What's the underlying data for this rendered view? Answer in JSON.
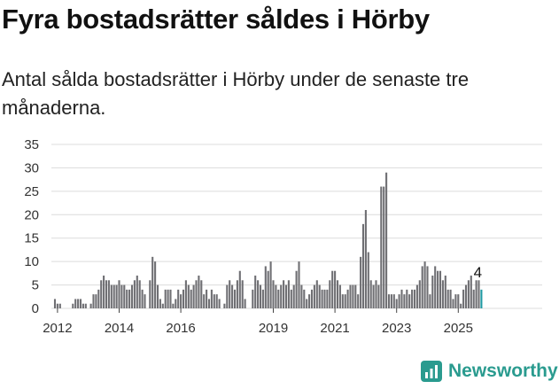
{
  "header": {
    "title": "Fyra bostadsrätter såldes i Hörby",
    "subtitle": "Antal sålda bostadsrätter i Hörby under de senaste tre månaderna."
  },
  "brand": {
    "name": "Newsworthy",
    "color": "#2a9b8f",
    "icon": "chart-logo-icon"
  },
  "chart_data": {
    "type": "bar",
    "ylim": [
      0,
      35
    ],
    "yticks": [
      0,
      5,
      10,
      15,
      20,
      25,
      30,
      35
    ],
    "xticks": [
      "2012",
      "2014",
      "2016",
      "2019",
      "2021",
      "2023",
      "2025"
    ],
    "grid": true,
    "bar_color": "#6f6f73",
    "highlight_color": "#1f9aa3",
    "highlight_last": true,
    "last_value_label": "4",
    "values": [
      2,
      1,
      1,
      0,
      0,
      0,
      0,
      1,
      2,
      2,
      2,
      1,
      1,
      0,
      1,
      3,
      3,
      4,
      6,
      7,
      6,
      6,
      5,
      5,
      5,
      6,
      5,
      5,
      4,
      4,
      5,
      6,
      7,
      6,
      4,
      3,
      0,
      6,
      11,
      10,
      5,
      2,
      1,
      4,
      4,
      4,
      1,
      2,
      4,
      3,
      4,
      6,
      5,
      4,
      5,
      6,
      7,
      6,
      3,
      4,
      2,
      4,
      3,
      3,
      2,
      0,
      1,
      5,
      6,
      5,
      4,
      6,
      8,
      6,
      2,
      0,
      0,
      4,
      7,
      6,
      5,
      4,
      9,
      8,
      10,
      6,
      5,
      4,
      5,
      6,
      5,
      6,
      4,
      5,
      8,
      10,
      5,
      4,
      2,
      3,
      4,
      5,
      6,
      5,
      4,
      4,
      4,
      6,
      8,
      8,
      6,
      5,
      3,
      3,
      4,
      5,
      5,
      5,
      3,
      11,
      18,
      21,
      12,
      6,
      5,
      6,
      5,
      26,
      26,
      29,
      3,
      3,
      3,
      2,
      3,
      4,
      3,
      4,
      3,
      4,
      4,
      5,
      6,
      9,
      10,
      9,
      3,
      7,
      9,
      8,
      8,
      6,
      7,
      4,
      4,
      2,
      3,
      3,
      1,
      4,
      5,
      6,
      7,
      4,
      6,
      6,
      4
    ],
    "xtick_index": {
      "2012": 1,
      "2014": 25,
      "2016": 49,
      "2019": 85,
      "2021": 109,
      "2023": 133,
      "2025": 157
    }
  }
}
